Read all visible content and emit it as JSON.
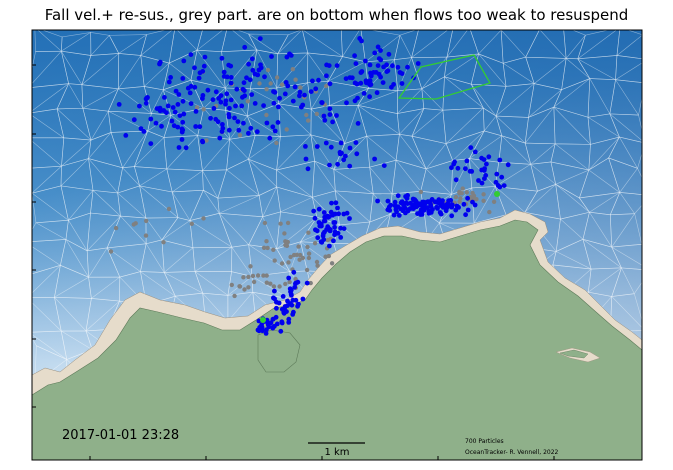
{
  "title": "Fall vel.+  re-sus., grey part. are on bottom when flows too weak to resuspend",
  "timestamp": "2017-01-01 23:28",
  "scale_bar_label": "1 km",
  "particle_count_label": "700 Particles",
  "credit": "OceanTracker- R. Vennell, 2022",
  "colors": {
    "deep_water": "#1f6fb8",
    "shallow_water": "#e8f1fa",
    "land": "#8fb08a",
    "shore": "#e6dccb",
    "moving_particle": "#0000ee",
    "bottom_particle": "#808080",
    "release_polygon": "#33cc33",
    "mesh": "#ffffff"
  },
  "legend": {
    "moving": "blue",
    "on_bottom": "grey"
  }
}
